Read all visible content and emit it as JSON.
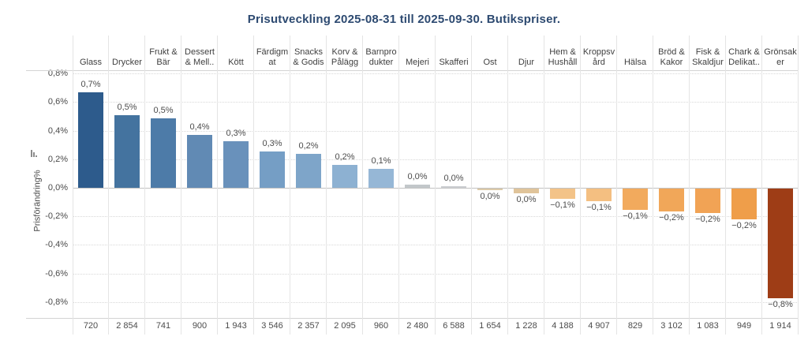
{
  "title": "Prisutveckling 2025-08-31 till 2025-09-30. Butikspriser.",
  "y_axis": {
    "label": "Prisförändring%",
    "tick_labels": [
      "0,8%",
      "0,6%",
      "0,4%",
      "0,2%",
      "0,0%",
      "-0,2%",
      "-0,4%",
      "-0,6%",
      "-0,8%"
    ],
    "tick_values": [
      0.8,
      0.6,
      0.4,
      0.2,
      0,
      -0.2,
      -0.4,
      -0.6,
      -0.8
    ]
  },
  "chart_data": {
    "type": "bar",
    "title": "Prisutveckling 2025-08-31 till 2025-09-30. Butikspriser.",
    "ylabel": "Prisförändring%",
    "unit": "%",
    "ylim": [
      -0.9,
      0.85
    ],
    "grid": true,
    "categories": [
      "Glass",
      "Drycker",
      "Frukt & Bär",
      "Dessert & Mell..",
      "Kött",
      "Färdigmat",
      "Snacks & Godis",
      "Korv & Pålägg",
      "Barnprodukter",
      "Mejeri",
      "Skafferi",
      "Ost",
      "Djur",
      "Hem & Hushåll",
      "Kroppsvård",
      "Hälsa",
      "Bröd & Kakor",
      "Fisk & Skaldjur",
      "Chark & Delikat..",
      "Grönsaker"
    ],
    "header_lines": [
      "Glass",
      "Drycker",
      "Frukt &\nBär",
      "Dessert\n& Mell..",
      "Kött",
      "Färdigm\nat",
      "Snacks\n& Godis",
      "Korv &\nPålägg",
      "Barnpro\ndukter",
      "Mejeri",
      "Skafferi",
      "Ost",
      "Djur",
      "Hem &\nHushåll",
      "Kroppsv\nård",
      "Hälsa",
      "Bröd &\nKakor",
      "Fisk &\nSkaldjur",
      "Chark &\nDelikat..",
      "Grönsak\ner"
    ],
    "values": [
      0.67,
      0.51,
      0.485,
      0.37,
      0.325,
      0.255,
      0.235,
      0.16,
      0.13,
      0.02,
      0.012,
      -0.012,
      -0.035,
      -0.07,
      -0.09,
      -0.15,
      -0.16,
      -0.17,
      -0.215,
      -0.77
    ],
    "value_labels": [
      "0,7%",
      "0,5%",
      "0,5%",
      "0,4%",
      "0,3%",
      "0,3%",
      "0,2%",
      "0,2%",
      "0,1%",
      "0,0%",
      "0,0%",
      "0,0%",
      "0,0%",
      "−0,1%",
      "−0,1%",
      "−0,1%",
      "−0,2%",
      "−0,2%",
      "−0,2%",
      "−0,8%"
    ],
    "bar_colors": [
      "#2d5b8c",
      "#44739f",
      "#4d7ba8",
      "#618ab4",
      "#6991bb",
      "#759ec5",
      "#7ea5c9",
      "#8db1d2",
      "#96b7d6",
      "#c2c7ca",
      "#cbced1",
      "#dccaa9",
      "#e0c49a",
      "#f3c388",
      "#f4bf81",
      "#f2aa5d",
      "#f1a759",
      "#f1a355",
      "#ef9e4a",
      "#9e3d16"
    ],
    "counts": [
      "720",
      "2 854",
      "741",
      "900",
      "1 943",
      "3 546",
      "2 357",
      "2 095",
      "960",
      "2 480",
      "6 588",
      "1 654",
      "1 228",
      "4 188",
      "4 907",
      "829",
      "3 102",
      "1 083",
      "949",
      "1 914"
    ]
  }
}
